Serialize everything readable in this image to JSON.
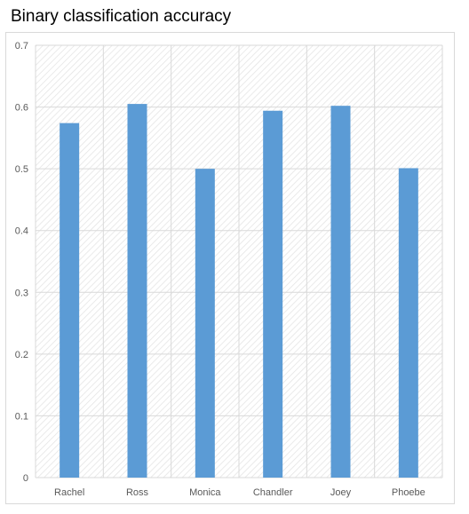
{
  "chart_data": {
    "type": "bar",
    "title": "Binary classification accuracy",
    "categories": [
      "Rachel",
      "Ross",
      "Monica",
      "Chandler",
      "Joey",
      "Phoebe"
    ],
    "values": [
      0.574,
      0.605,
      0.5,
      0.594,
      0.602,
      0.501
    ],
    "ylim": [
      0,
      0.7
    ],
    "yticks": [
      "0",
      "0.1",
      "0.2",
      "0.3",
      "0.4",
      "0.5",
      "0.6",
      "0.7"
    ],
    "xlabel": "",
    "ylabel": "",
    "grid": true,
    "legend": "none",
    "bar_color": "#5b9bd5"
  }
}
